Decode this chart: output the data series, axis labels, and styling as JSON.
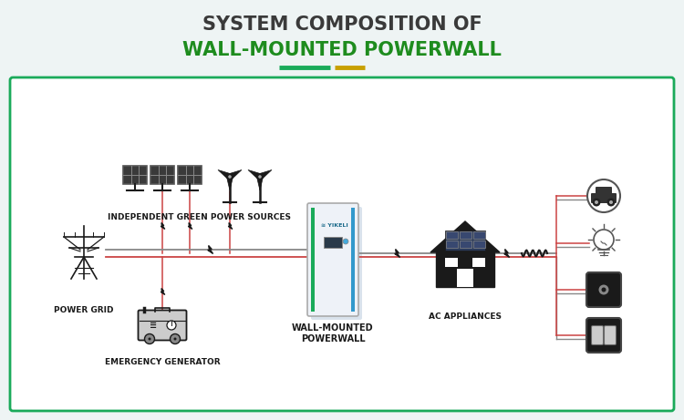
{
  "title_line1": "SYSTEM COMPOSITION OF",
  "title_line2": "WALL-MOUNTED POWERWALL",
  "title_line1_color": "#3a3a3a",
  "title_line2_color": "#1e8c1e",
  "bg_color": "#eef4f4",
  "box_bg": "#ffffff",
  "box_border_color": "#1aaa5a",
  "underline_green": "#1aaa5a",
  "underline_yellow": "#c8a000",
  "labels": {
    "green_sources": "INDEPENDENT GREEN POWER SOURCES",
    "power_grid": "POWER GRID",
    "generator": "EMERGENCY GENERATOR",
    "powerwall_l1": "WALL-MOUNTED",
    "powerwall_l2": "POWERWALL",
    "ac": "AC APPLIANCES"
  },
  "line_gray": "#888888",
  "line_red": "#cc4444",
  "pw_body": "#f0f4f8",
  "pw_stripe_green": "#1aaa5a",
  "pw_stripe_blue": "#3399cc",
  "icon_dark": "#1a1a1a",
  "icon_mid": "#555555"
}
